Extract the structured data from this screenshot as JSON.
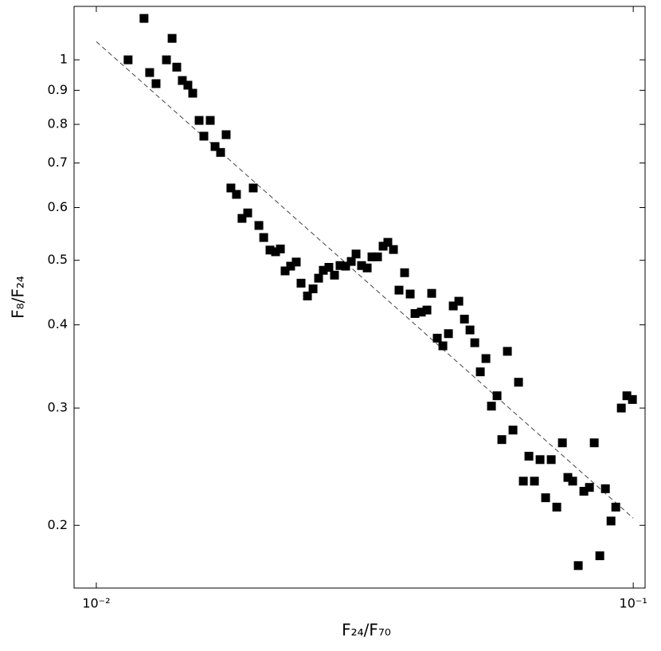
{
  "chart_data": {
    "type": "scatter",
    "xlabel": "F₂₄/F₇₀",
    "ylabel": "F₈/F₂₄",
    "xscale": "log",
    "yscale": "log",
    "xlim": [
      0.00909,
      0.1052
    ],
    "ylim": [
      0.161,
      1.203
    ],
    "xticks": [
      {
        "value": 0.01,
        "label": "10⁻²"
      },
      {
        "value": 0.1,
        "label": "10⁻¹"
      }
    ],
    "yticks": [
      0.2,
      0.3,
      0.4,
      0.5,
      0.6,
      0.7,
      0.8,
      0.9,
      1
    ],
    "points": {
      "color": "#000000",
      "marker": "square",
      "x": [
        0.01146,
        0.01227,
        0.01257,
        0.01292,
        0.01351,
        0.01384,
        0.01412,
        0.01446,
        0.01481,
        0.01512,
        0.01554,
        0.01586,
        0.0163,
        0.01664,
        0.01704,
        0.01745,
        0.01781,
        0.01824,
        0.01868,
        0.01914,
        0.0196,
        0.02008,
        0.0205,
        0.02106,
        0.02157,
        0.02202,
        0.02247,
        0.02301,
        0.02357,
        0.02406,
        0.02473,
        0.02533,
        0.02594,
        0.02647,
        0.02711,
        0.02777,
        0.02844,
        0.02913,
        0.02984,
        0.03046,
        0.03119,
        0.03195,
        0.03261,
        0.0334,
        0.03421,
        0.03491,
        0.03576,
        0.03662,
        0.03751,
        0.03842,
        0.03922,
        0.0403,
        0.04128,
        0.04213,
        0.04315,
        0.0442,
        0.04527,
        0.04621,
        0.04733,
        0.04848,
        0.04965,
        0.05068,
        0.0519,
        0.05316,
        0.05444,
        0.05576,
        0.05691,
        0.05829,
        0.0597,
        0.06114,
        0.06241,
        0.06392,
        0.06546,
        0.06705,
        0.06867,
        0.07034,
        0.07204,
        0.07379,
        0.07555,
        0.07712,
        0.07899,
        0.08091,
        0.08287,
        0.08459,
        0.08664,
        0.08874,
        0.0909,
        0.09278,
        0.09501,
        0.0973,
        0.09965
      ],
      "y": [
        1.0,
        1.154,
        0.957,
        0.921,
        1.0,
        1.077,
        0.975,
        0.931,
        0.916,
        0.891,
        0.811,
        0.768,
        0.811,
        0.741,
        0.726,
        0.772,
        0.642,
        0.628,
        0.578,
        0.589,
        0.642,
        0.564,
        0.541,
        0.518,
        0.515,
        0.52,
        0.482,
        0.49,
        0.497,
        0.462,
        0.442,
        0.453,
        0.47,
        0.483,
        0.488,
        0.475,
        0.491,
        0.49,
        0.498,
        0.511,
        0.491,
        0.487,
        0.506,
        0.506,
        0.525,
        0.532,
        0.519,
        0.451,
        0.479,
        0.445,
        0.416,
        0.418,
        0.421,
        0.446,
        0.382,
        0.372,
        0.388,
        0.427,
        0.434,
        0.408,
        0.393,
        0.376,
        0.34,
        0.356,
        0.302,
        0.313,
        0.269,
        0.365,
        0.278,
        0.328,
        0.233,
        0.254,
        0.233,
        0.251,
        0.22,
        0.251,
        0.213,
        0.266,
        0.236,
        0.233,
        0.174,
        0.225,
        0.228,
        0.266,
        0.18,
        0.227,
        0.203,
        0.213,
        0.3,
        0.313,
        0.309
      ]
    },
    "fit": {
      "color": "#444444",
      "dashed": true,
      "x": [
        0.01,
        0.1
      ],
      "y": [
        1.065,
        0.205
      ]
    }
  }
}
